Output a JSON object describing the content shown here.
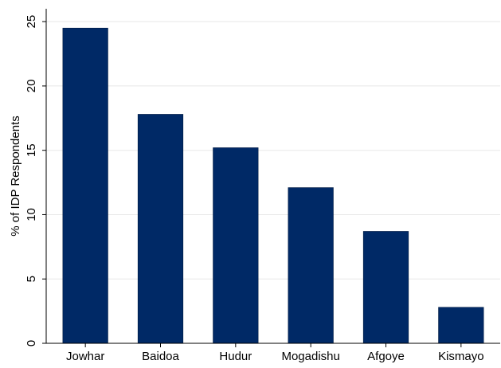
{
  "chart_data": {
    "type": "bar",
    "title": "",
    "xlabel": "",
    "ylabel": "% of IDP Respondents",
    "categories": [
      "Jowhar",
      "Baidoa",
      "Hudur",
      "Mogadishu",
      "Afgoye",
      "Kismayo"
    ],
    "values": [
      24.5,
      17.8,
      15.2,
      12.1,
      8.7,
      2.8
    ],
    "ylim": [
      0,
      26
    ],
    "yticks": [
      0,
      5,
      10,
      15,
      20,
      25
    ],
    "grid": true,
    "legend": "none",
    "colors": {
      "bar": "#002966",
      "grid": "#e8e8e8",
      "axis": "#000000"
    }
  }
}
